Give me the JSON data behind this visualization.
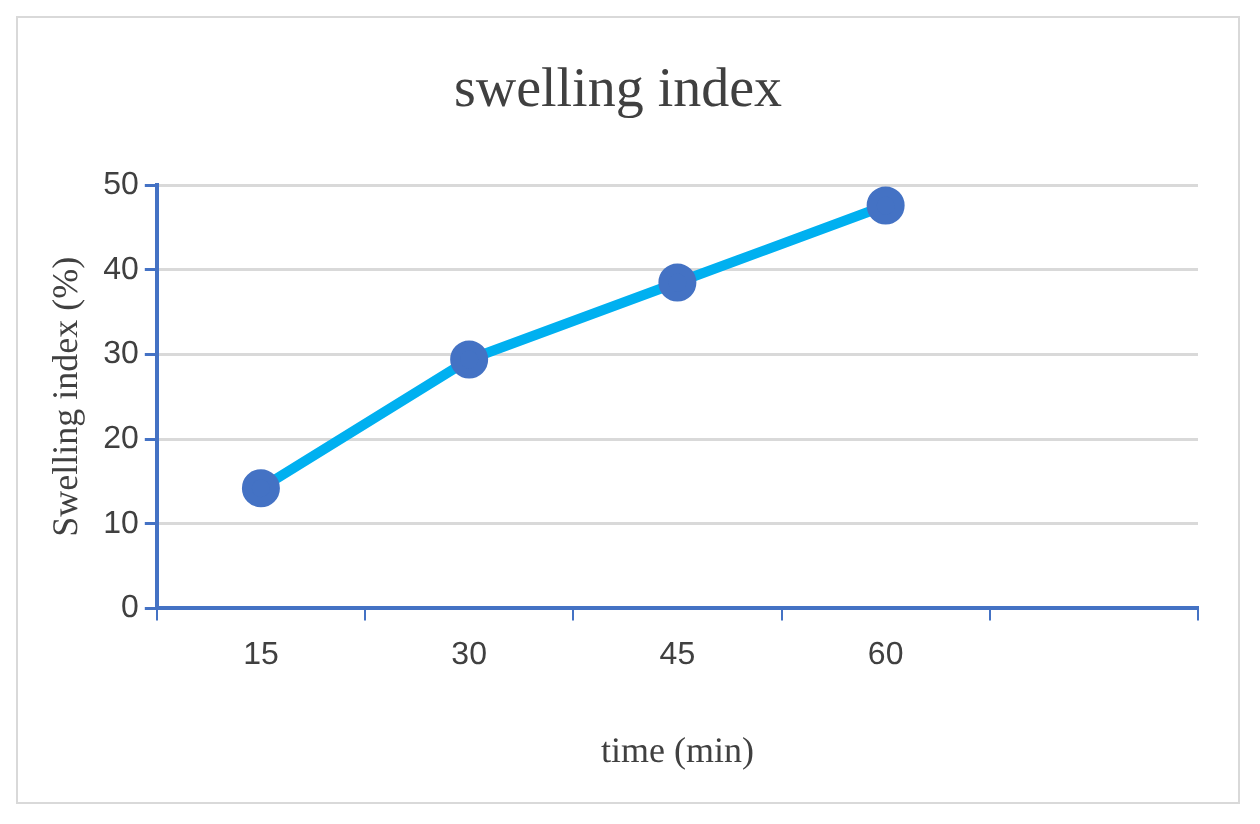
{
  "chart_data": {
    "type": "line",
    "title": "swelling index",
    "xlabel": "time (min)",
    "ylabel": "Swelling index (%)",
    "categories": [
      "15",
      "30",
      "45",
      "60",
      null
    ],
    "series": [
      {
        "color": "#00b0f0",
        "colors": [
          "#4472c4",
          "#4472c4",
          "#4472c4",
          "#4472c4",
          null
        ],
        "values": [
          14.2,
          29.4,
          38.5,
          47.6,
          null
        ]
      }
    ],
    "ylim": [
      0,
      50
    ],
    "yticks": [
      0,
      10,
      20,
      30,
      40,
      50
    ],
    "grid": "y",
    "legend": false,
    "marker": "circle",
    "line_style": "solid"
  }
}
